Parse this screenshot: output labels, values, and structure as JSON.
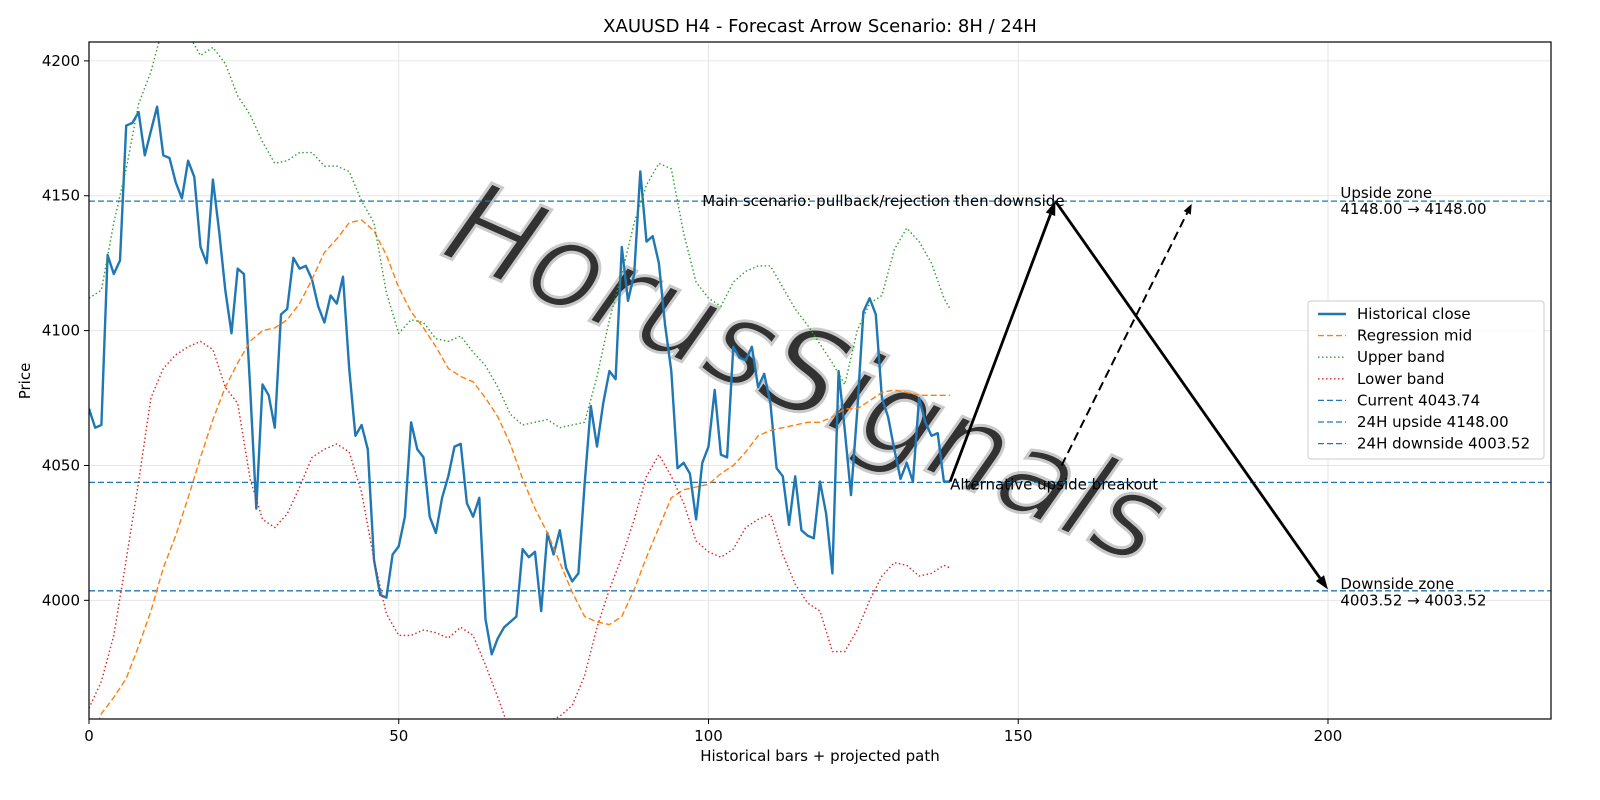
{
  "chart_data": {
    "type": "line",
    "title": "XAUUSD H4 - Forecast Arrow Scenario: 8H / 24H",
    "xlabel": "Historical bars + projected path",
    "ylabel": "Price",
    "xlim": [
      0,
      236
    ],
    "ylim": [
      3956,
      4207
    ],
    "xticks": [
      0,
      50,
      100,
      150,
      200
    ],
    "yticks": [
      4000,
      4050,
      4100,
      4150,
      4200
    ],
    "grid": true,
    "legend_position": "center-right",
    "watermark": "HorusSignals",
    "colors": {
      "historical": "#1f77b4",
      "regression": "#ff7f0e",
      "upper": "#2ca02c",
      "lower": "#d62728",
      "hline": "#1f77b4",
      "arrow": "#000000"
    },
    "series": [
      {
        "name": "Historical close",
        "style": "solid",
        "x": [
          0,
          1,
          2,
          3,
          4,
          5,
          6,
          7,
          8,
          9,
          10,
          11,
          12,
          13,
          14,
          15,
          16,
          17,
          18,
          19,
          20,
          21,
          22,
          23,
          24,
          25,
          26,
          27,
          28,
          29,
          30,
          31,
          32,
          33,
          34,
          35,
          36,
          37,
          38,
          39,
          40,
          41,
          42,
          43,
          44,
          45,
          46,
          47,
          48,
          49,
          50,
          51,
          52,
          53,
          54,
          55,
          56,
          57,
          58,
          59,
          60,
          61,
          62,
          63,
          64,
          65,
          66,
          67,
          68,
          69,
          70,
          71,
          72,
          73,
          74,
          75,
          76,
          77,
          78,
          79,
          80,
          81,
          82,
          83,
          84,
          85,
          86,
          87,
          88,
          89,
          90,
          91,
          92,
          93,
          94,
          95,
          96,
          97,
          98,
          99,
          100,
          101,
          102,
          103,
          104,
          105,
          106,
          107,
          108,
          109,
          110,
          111,
          112,
          113,
          114,
          115,
          116,
          117,
          118,
          119,
          120,
          121,
          122,
          123,
          124,
          125,
          126,
          127,
          128,
          129,
          130,
          131,
          132,
          133,
          134,
          135,
          136,
          137,
          138,
          139
        ],
        "values": [
          4071,
          4064,
          4065,
          4128,
          4121,
          4126,
          4176,
          4177,
          4181,
          4165,
          4174,
          4183,
          4165,
          4164,
          4155,
          4149,
          4163,
          4157,
          4131,
          4125,
          4156,
          4137,
          4115,
          4099,
          4123,
          4121,
          4079,
          4034,
          4080,
          4076,
          4064,
          4106,
          4108,
          4127,
          4123,
          4124,
          4119,
          4109,
          4103,
          4113,
          4110,
          4120,
          4086,
          4061,
          4065,
          4056,
          4015,
          4002,
          4001,
          4017,
          4020,
          4031,
          4066,
          4056,
          4053,
          4031,
          4025,
          4038,
          4046,
          4057,
          4058,
          4036,
          4031,
          4038,
          3993,
          3980,
          3986,
          3990,
          3992,
          3994,
          4019,
          4016,
          4018,
          3996,
          4025,
          4017,
          4026,
          4012,
          4007,
          4010,
          4043,
          4072,
          4057,
          4073,
          4085,
          4082,
          4131,
          4111,
          4121,
          4159,
          4133,
          4135,
          4125,
          4102,
          4085,
          4049,
          4051,
          4047,
          4030,
          4051,
          4057,
          4078,
          4054,
          4053,
          4094,
          4090,
          4089,
          4094,
          4079,
          4084,
          4073,
          4049,
          4046,
          4028,
          4046,
          4026,
          4024,
          4023,
          4044,
          4032,
          4010,
          4085,
          4063,
          4039,
          4070,
          4107,
          4112,
          4106,
          4075,
          4068,
          4056,
          4045,
          4051,
          4044,
          4075,
          4066,
          4061,
          4062,
          4044,
          4044
        ]
      },
      {
        "name": "Regression mid",
        "style": "dashed",
        "x": [
          0,
          2,
          4,
          6,
          8,
          10,
          12,
          14,
          16,
          18,
          20,
          22,
          24,
          26,
          28,
          30,
          32,
          34,
          36,
          38,
          40,
          42,
          44,
          46,
          48,
          50,
          52,
          54,
          56,
          58,
          60,
          62,
          64,
          66,
          68,
          70,
          72,
          74,
          76,
          78,
          80,
          82,
          84,
          86,
          88,
          90,
          92,
          94,
          96,
          98,
          100,
          102,
          104,
          106,
          108,
          110,
          112,
          114,
          116,
          118,
          120,
          122,
          124,
          126,
          128,
          130,
          132,
          134,
          136,
          138,
          139
        ],
        "values": [
          3945,
          3958,
          3964,
          3971,
          3983,
          3996,
          4012,
          4024,
          4038,
          4053,
          4067,
          4079,
          4088,
          4096,
          4100,
          4101,
          4104,
          4110,
          4119,
          4129,
          4134,
          4140,
          4141,
          4137,
          4128,
          4116,
          4107,
          4101,
          4094,
          4086,
          4083,
          4081,
          4075,
          4068,
          4058,
          4045,
          4034,
          4025,
          4014,
          4003,
          3994,
          3992,
          3991,
          3994,
          4004,
          4016,
          4027,
          4038,
          4041,
          4042,
          4043,
          4047,
          4050,
          4055,
          4061,
          4063,
          4064,
          4065,
          4066,
          4066,
          4068,
          4071,
          4071,
          4074,
          4077,
          4078,
          4077,
          4076,
          4076,
          4076,
          4076
        ]
      },
      {
        "name": "Upper band",
        "style": "dotted",
        "x": [
          0,
          2,
          4,
          6,
          8,
          10,
          12,
          14,
          16,
          18,
          20,
          22,
          24,
          26,
          28,
          30,
          32,
          34,
          36,
          38,
          40,
          42,
          44,
          46,
          48,
          50,
          52,
          54,
          56,
          58,
          60,
          62,
          64,
          66,
          68,
          70,
          72,
          74,
          76,
          78,
          80,
          82,
          84,
          86,
          88,
          90,
          92,
          94,
          96,
          98,
          100,
          102,
          104,
          106,
          108,
          110,
          112,
          114,
          116,
          118,
          120,
          122,
          124,
          126,
          128,
          130,
          132,
          134,
          136,
          138,
          139
        ],
        "values": [
          4112,
          4115,
          4140,
          4160,
          4184,
          4196,
          4213,
          4216,
          4210,
          4202,
          4205,
          4199,
          4187,
          4180,
          4170,
          4162,
          4163,
          4166,
          4166,
          4161,
          4161,
          4159,
          4148,
          4140,
          4114,
          4099,
          4104,
          4103,
          4097,
          4096,
          4098,
          4092,
          4087,
          4079,
          4069,
          4065,
          4066,
          4067,
          4064,
          4065,
          4066,
          4083,
          4104,
          4121,
          4140,
          4154,
          4162,
          4160,
          4136,
          4118,
          4112,
          4109,
          4118,
          4122,
          4124,
          4124,
          4116,
          4108,
          4102,
          4095,
          4088,
          4080,
          4100,
          4110,
          4113,
          4130,
          4138,
          4133,
          4125,
          4112,
          4108
        ]
      },
      {
        "name": "Lower band",
        "style": "dotted",
        "x": [
          0,
          2,
          4,
          6,
          8,
          10,
          12,
          14,
          16,
          18,
          20,
          22,
          24,
          26,
          28,
          30,
          32,
          34,
          36,
          38,
          40,
          42,
          44,
          46,
          48,
          50,
          52,
          54,
          56,
          58,
          60,
          62,
          64,
          66,
          68,
          70,
          72,
          74,
          76,
          78,
          80,
          82,
          84,
          86,
          88,
          90,
          92,
          94,
          96,
          98,
          100,
          102,
          104,
          106,
          108,
          110,
          112,
          114,
          116,
          118,
          120,
          122,
          124,
          126,
          128,
          130,
          132,
          134,
          136,
          138,
          139
        ],
        "values": [
          3960,
          3970,
          3987,
          4015,
          4044,
          4075,
          4086,
          4091,
          4094,
          4096,
          4093,
          4079,
          4073,
          4045,
          4030,
          4027,
          4032,
          4042,
          4053,
          4056,
          4058,
          4055,
          4040,
          4015,
          3995,
          3987,
          3987,
          3989,
          3988,
          3986,
          3990,
          3987,
          3976,
          3964,
          3951,
          3950,
          3955,
          3955,
          3957,
          3961,
          3972,
          3990,
          4004,
          4016,
          4030,
          4046,
          4054,
          4046,
          4036,
          4022,
          4018,
          4016,
          4019,
          4027,
          4030,
          4032,
          4017,
          4006,
          3999,
          3996,
          3981,
          3981,
          3989,
          4000,
          4009,
          4014,
          4013,
          4009,
          4010,
          4013,
          4012
        ]
      }
    ],
    "hlines": [
      {
        "label": "Current 4043.74",
        "y": 4043.74,
        "style": "dashed"
      },
      {
        "label": "24H upside 4148.00",
        "y": 4148.0,
        "style": "dashed"
      },
      {
        "label": "24H downside 4003.52",
        "y": 4003.52,
        "style": "dashed"
      }
    ],
    "arrows": [
      {
        "from": [
          139,
          4044
        ],
        "to": [
          156,
          4148
        ],
        "style": "solid",
        "role": "main-up"
      },
      {
        "from": [
          156,
          4148
        ],
        "to": [
          200,
          4004
        ],
        "style": "solid",
        "role": "main-down"
      },
      {
        "from": [
          157,
          4050
        ],
        "to": [
          178,
          4147
        ],
        "style": "dashed",
        "role": "alternative"
      }
    ],
    "annotations": [
      {
        "text": "Main scenario: pullback/rejection then downside",
        "x": 99,
        "y": 4148
      },
      {
        "text": "Alternative upside breakout",
        "x": 139,
        "y": 4043
      },
      {
        "text": "Upside zone",
        "x": 202,
        "y": 4151
      },
      {
        "text": "4148.00 → 4148.00",
        "x": 202,
        "y": 4145
      },
      {
        "text": "Downside zone",
        "x": 202,
        "y": 4006
      },
      {
        "text": "4003.52 → 4003.52",
        "x": 202,
        "y": 4000
      }
    ]
  }
}
